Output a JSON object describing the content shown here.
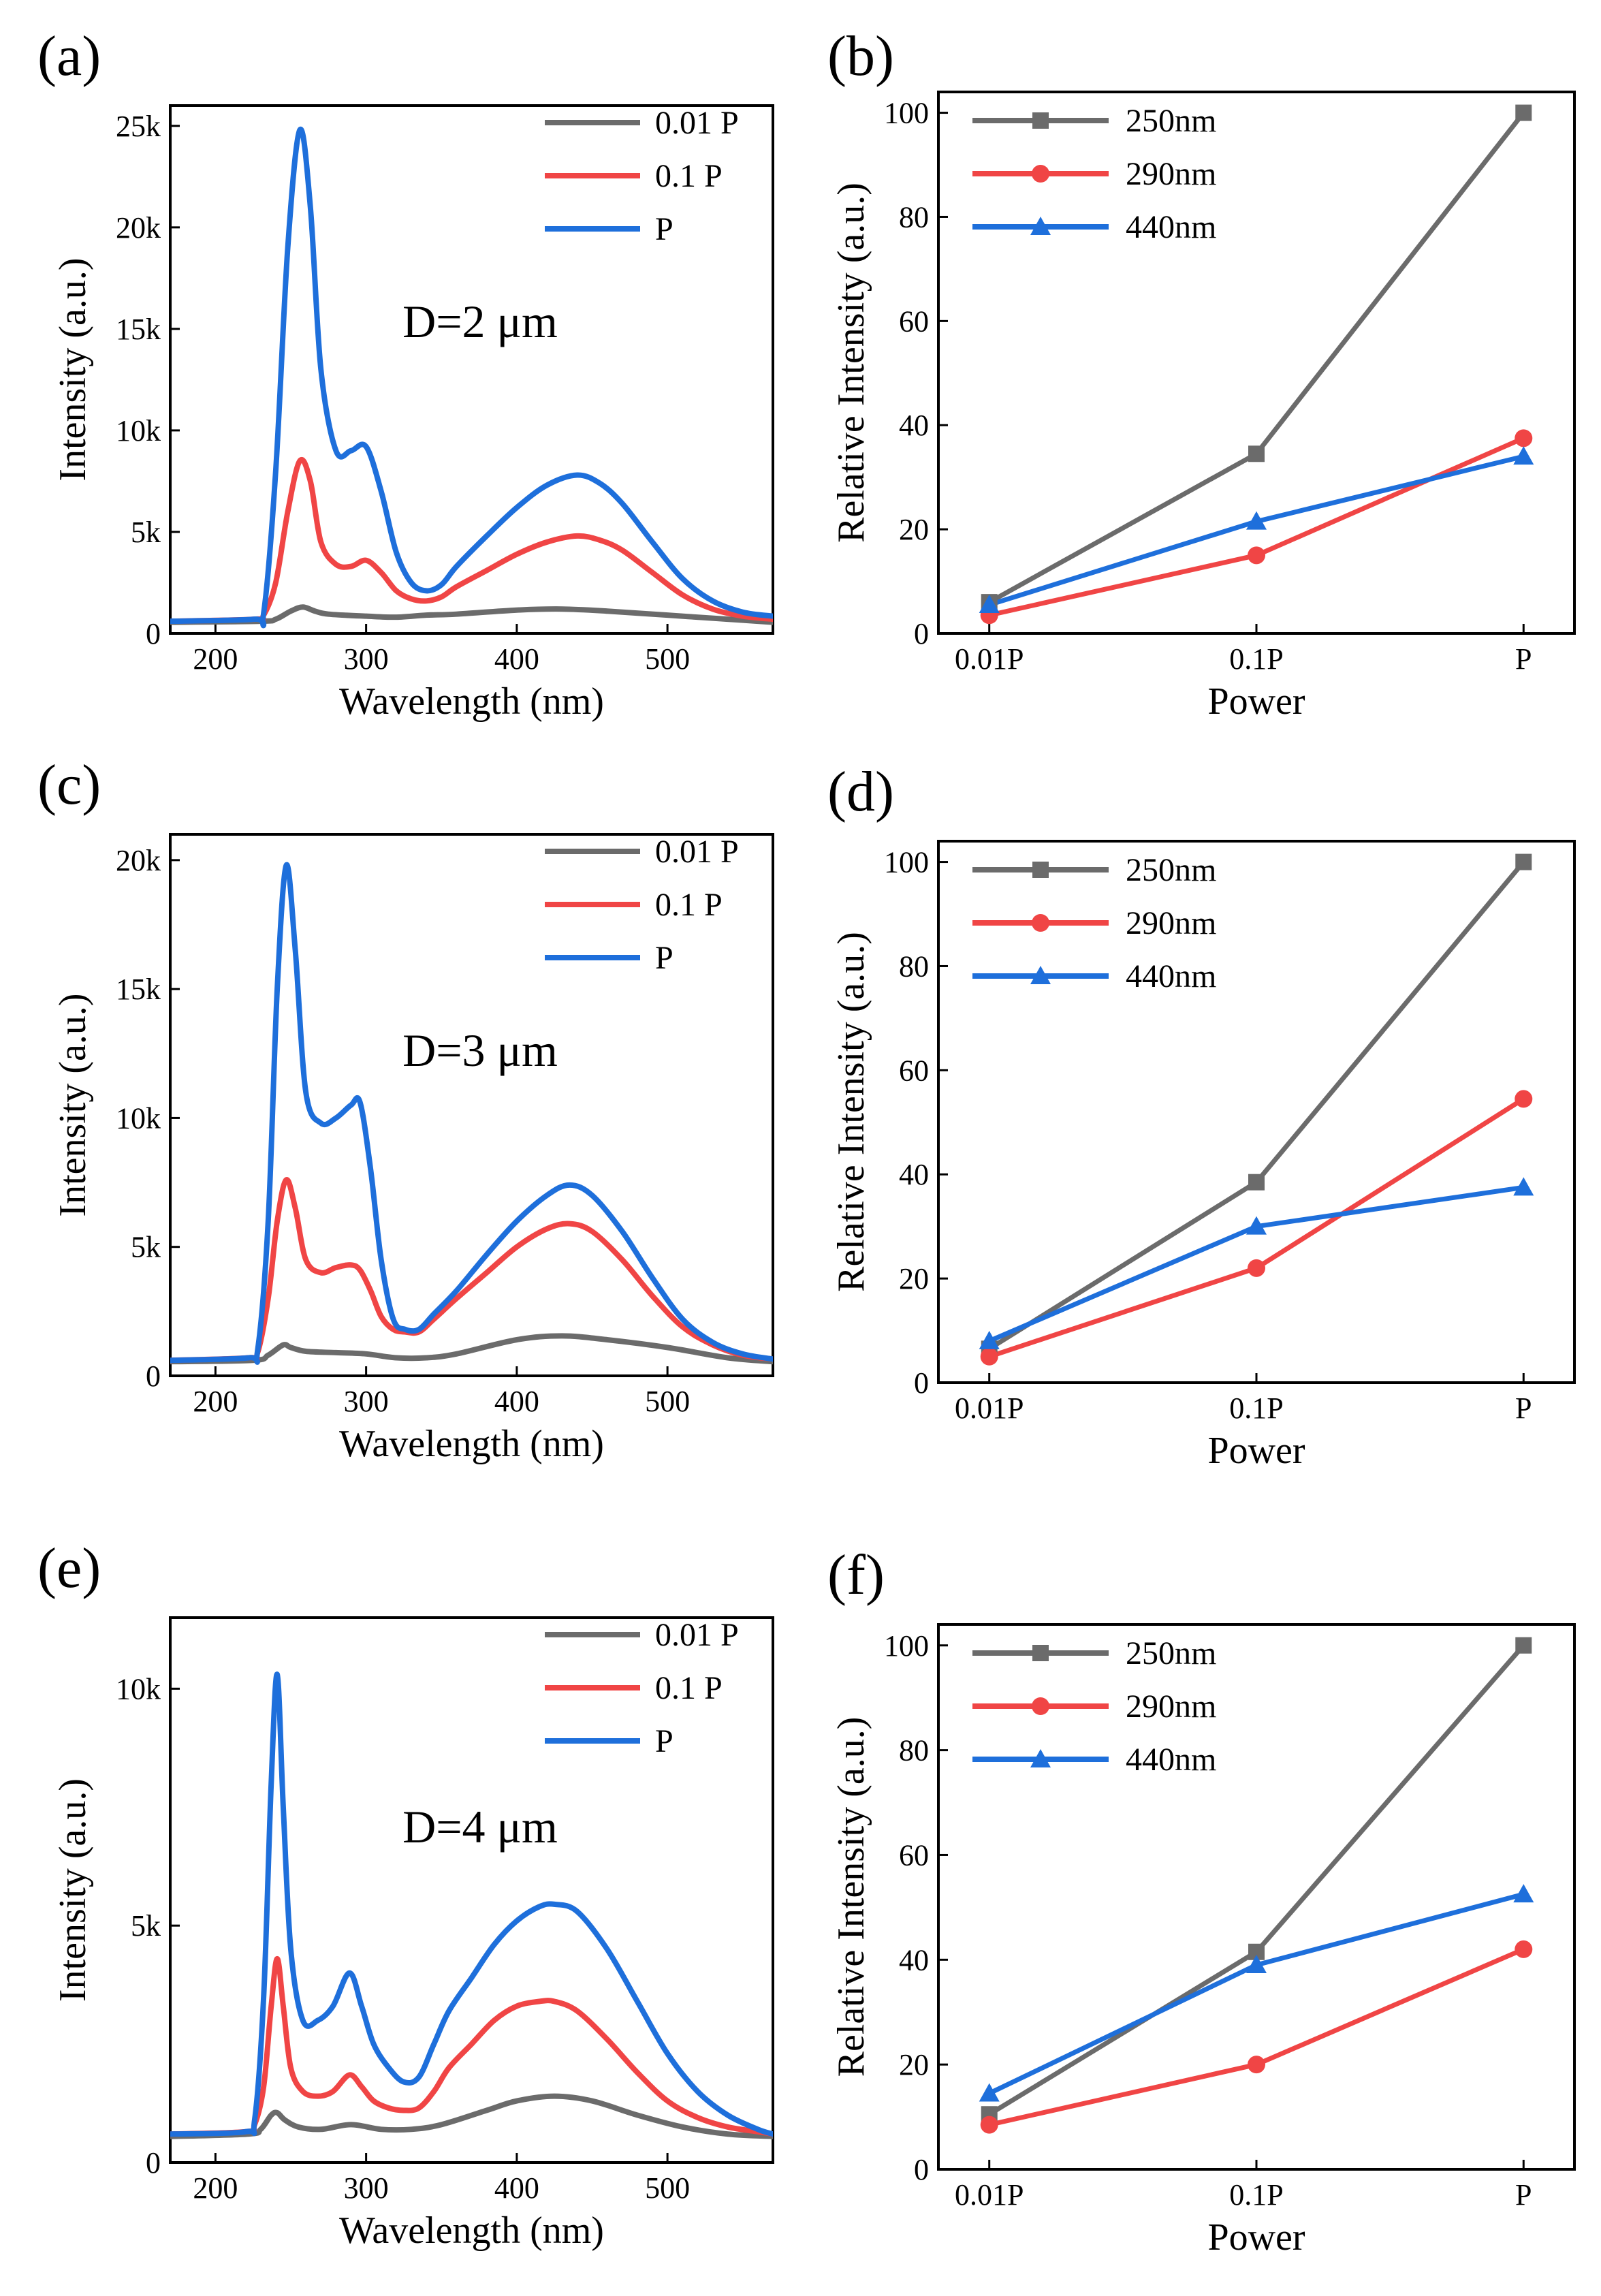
{
  "colors": {
    "gray": "#6b6b6b",
    "red": "#f04545",
    "blue": "#1e6fdb"
  },
  "chart_data": [
    {
      "id": "a",
      "panel_label": "(a)",
      "type": "line",
      "xlabel": "Wavelength (nm)",
      "ylabel": "Intensity (a.u.)",
      "xlim": [
        170,
        570
      ],
      "ylim": [
        0,
        26000
      ],
      "xticks": [
        200,
        300,
        400,
        500
      ],
      "xtick_labels": [
        "200",
        "300",
        "400",
        "500"
      ],
      "yticks": [
        0,
        5000,
        10000,
        15000,
        20000,
        25000
      ],
      "ytick_labels": [
        "0",
        "5k",
        "10k",
        "15k",
        "20k",
        "25k"
      ],
      "annotation": "D=2 μm",
      "legend_position": "top-right",
      "series": [
        {
          "name": "0.01 P",
          "color": "#6b6b6b",
          "x": [
            170,
            230,
            240,
            250,
            258,
            266,
            275,
            300,
            320,
            340,
            360,
            400,
            430,
            460,
            500,
            540,
            570
          ],
          "y": [
            550,
            600,
            700,
            1100,
            1300,
            1100,
            950,
            850,
            800,
            900,
            950,
            1150,
            1200,
            1100,
            900,
            700,
            550
          ]
        },
        {
          "name": "0.1 P",
          "color": "#f04545",
          "x": [
            170,
            226,
            232,
            240,
            248,
            256,
            263,
            270,
            280,
            290,
            300,
            310,
            320,
            330,
            340,
            350,
            360,
            380,
            400,
            420,
            440,
            455,
            470,
            490,
            510,
            530,
            550,
            570
          ],
          "y": [
            600,
            700,
            900,
            2500,
            6000,
            8500,
            7500,
            4500,
            3400,
            3300,
            3600,
            3000,
            2100,
            1700,
            1600,
            1800,
            2300,
            3100,
            3900,
            4500,
            4800,
            4600,
            4100,
            3000,
            1900,
            1200,
            850,
            700
          ]
        },
        {
          "name": "P",
          "color": "#1e6fdb",
          "x": [
            170,
            226,
            232,
            240,
            248,
            256,
            263,
            270,
            280,
            290,
            300,
            310,
            320,
            330,
            340,
            350,
            360,
            380,
            400,
            420,
            440,
            455,
            470,
            490,
            510,
            530,
            550,
            570
          ],
          "y": [
            600,
            700,
            1000,
            8000,
            19000,
            24800,
            21000,
            13000,
            9000,
            9000,
            9200,
            7000,
            4000,
            2500,
            2100,
            2400,
            3300,
            4800,
            6200,
            7300,
            7800,
            7400,
            6400,
            4500,
            2700,
            1600,
            1050,
            850
          ]
        }
      ]
    },
    {
      "id": "b",
      "panel_label": "(b)",
      "type": "line",
      "xlabel": "Power",
      "ylabel": "Relative Intensity (a.u.)",
      "categories": [
        "0.01P",
        "0.1P",
        "P"
      ],
      "ylim": [
        0,
        104
      ],
      "yticks": [
        0,
        20,
        40,
        60,
        80,
        100
      ],
      "ytick_labels": [
        "0",
        "20",
        "40",
        "60",
        "80",
        "100"
      ],
      "legend_position": "top-left",
      "series": [
        {
          "name": "250nm",
          "color": "#6b6b6b",
          "marker": "square",
          "values": [
            6,
            34.5,
            100
          ]
        },
        {
          "name": "290nm",
          "color": "#f04545",
          "marker": "circle",
          "values": [
            3.5,
            15,
            37.5
          ]
        },
        {
          "name": "440nm",
          "color": "#1e6fdb",
          "marker": "triangle",
          "values": [
            5.5,
            21.5,
            34
          ]
        }
      ]
    },
    {
      "id": "c",
      "panel_label": "(c)",
      "type": "line",
      "xlabel": "Wavelength (nm)",
      "ylabel": "Intensity (a.u.)",
      "xlim": [
        170,
        570
      ],
      "ylim": [
        0,
        21000
      ],
      "xticks": [
        200,
        300,
        400,
        500
      ],
      "xtick_labels": [
        "200",
        "300",
        "400",
        "500"
      ],
      "yticks": [
        0,
        5000,
        10000,
        15000,
        20000
      ],
      "ytick_labels": [
        "0",
        "5k",
        "10k",
        "15k",
        "20k"
      ],
      "annotation": "D=3 μm",
      "legend_position": "top-right",
      "series": [
        {
          "name": "0.01 P",
          "color": "#6b6b6b",
          "x": [
            170,
            225,
            235,
            245,
            250,
            260,
            280,
            300,
            320,
            340,
            360,
            400,
            430,
            460,
            500,
            540,
            570
          ],
          "y": [
            550,
            600,
            800,
            1200,
            1100,
            950,
            900,
            850,
            700,
            700,
            850,
            1400,
            1550,
            1400,
            1100,
            700,
            550
          ]
        },
        {
          "name": "0.1 P",
          "color": "#f04545",
          "x": [
            170,
            222,
            228,
            235,
            241,
            247,
            253,
            260,
            270,
            280,
            290,
            296,
            303,
            310,
            318,
            326,
            335,
            345,
            360,
            380,
            400,
            420,
            435,
            450,
            470,
            490,
            510,
            530,
            550,
            570
          ],
          "y": [
            600,
            700,
            900,
            3000,
            6000,
            7600,
            6500,
            4500,
            4000,
            4200,
            4300,
            4100,
            3300,
            2300,
            1800,
            1700,
            1700,
            2200,
            3000,
            4000,
            5000,
            5700,
            5900,
            5600,
            4500,
            3100,
            1900,
            1200,
            800,
            650
          ]
        },
        {
          "name": "P",
          "color": "#1e6fdb",
          "x": [
            170,
            222,
            228,
            235,
            241,
            247,
            253,
            260,
            270,
            280,
            290,
            296,
            303,
            310,
            318,
            326,
            335,
            345,
            360,
            380,
            400,
            420,
            435,
            450,
            470,
            490,
            510,
            530,
            550,
            570
          ],
          "y": [
            600,
            700,
            1000,
            6000,
            15000,
            19800,
            16500,
            11000,
            9800,
            10000,
            10500,
            10600,
            8000,
            4500,
            2200,
            1800,
            1800,
            2400,
            3300,
            4700,
            6000,
            7000,
            7400,
            7000,
            5600,
            3800,
            2200,
            1300,
            850,
            650
          ]
        }
      ]
    },
    {
      "id": "d",
      "panel_label": "(d)",
      "type": "line",
      "xlabel": "Power",
      "ylabel": "Relative Intensity (a.u.)",
      "categories": [
        "0.01P",
        "0.1P",
        "P"
      ],
      "ylim": [
        0,
        104
      ],
      "yticks": [
        0,
        20,
        40,
        60,
        80,
        100
      ],
      "ytick_labels": [
        "0",
        "20",
        "40",
        "60",
        "80",
        "100"
      ],
      "legend_position": "top-left",
      "series": [
        {
          "name": "250nm",
          "color": "#6b6b6b",
          "marker": "square",
          "values": [
            6.5,
            38.5,
            100
          ]
        },
        {
          "name": "290nm",
          "color": "#f04545",
          "marker": "circle",
          "values": [
            5,
            22,
            54.5
          ]
        },
        {
          "name": "440nm",
          "color": "#1e6fdb",
          "marker": "triangle",
          "values": [
            8,
            30,
            37.5
          ]
        }
      ]
    },
    {
      "id": "e",
      "panel_label": "(e)",
      "type": "line",
      "xlabel": "Wavelength (nm)",
      "ylabel": "Intensity (a.u.)",
      "xlim": [
        170,
        570
      ],
      "ylim": [
        0,
        11500
      ],
      "xticks": [
        200,
        300,
        400,
        500
      ],
      "xtick_labels": [
        "200",
        "300",
        "400",
        "500"
      ],
      "yticks": [
        0,
        5000,
        10000
      ],
      "ytick_labels": [
        "0",
        "5k",
        "10k"
      ],
      "annotation": "D=4 μm",
      "legend_position": "top-right",
      "series": [
        {
          "name": "0.01 P",
          "color": "#6b6b6b",
          "x": [
            170,
            222,
            230,
            237,
            241,
            246,
            255,
            270,
            290,
            310,
            330,
            350,
            380,
            400,
            425,
            450,
            480,
            510,
            540,
            570
          ],
          "y": [
            550,
            600,
            700,
            1000,
            1050,
            900,
            750,
            700,
            800,
            700,
            700,
            800,
            1100,
            1300,
            1400,
            1300,
            1000,
            750,
            600,
            550
          ]
        },
        {
          "name": "0.1 P",
          "color": "#f04545",
          "x": [
            170,
            220,
            226,
            232,
            237,
            241,
            245,
            250,
            258,
            268,
            278,
            289,
            297,
            305,
            315,
            325,
            335,
            345,
            355,
            370,
            385,
            400,
            415,
            425,
            440,
            460,
            480,
            500,
            520,
            540,
            560,
            570
          ],
          "y": [
            600,
            650,
            800,
            1600,
            3300,
            4300,
            3300,
            2000,
            1500,
            1400,
            1500,
            1850,
            1600,
            1300,
            1150,
            1100,
            1150,
            1500,
            2000,
            2500,
            3000,
            3300,
            3400,
            3400,
            3200,
            2600,
            1900,
            1300,
            950,
            750,
            650,
            600
          ]
        },
        {
          "name": "P",
          "color": "#1e6fdb",
          "x": [
            170,
            220,
            226,
            232,
            237,
            241,
            245,
            250,
            258,
            268,
            278,
            289,
            297,
            305,
            315,
            325,
            335,
            345,
            355,
            370,
            385,
            400,
            415,
            425,
            440,
            460,
            480,
            500,
            520,
            540,
            560,
            570
          ],
          "y": [
            600,
            650,
            900,
            3500,
            8000,
            10300,
            7500,
            4500,
            3000,
            3000,
            3300,
            4000,
            3300,
            2500,
            2000,
            1700,
            1800,
            2500,
            3200,
            3900,
            4600,
            5100,
            5400,
            5450,
            5300,
            4500,
            3400,
            2300,
            1500,
            1000,
            700,
            600
          ]
        }
      ]
    },
    {
      "id": "f",
      "panel_label": "(f)",
      "type": "line",
      "xlabel": "Power",
      "ylabel": "Relative Intensity (a.u.)",
      "categories": [
        "0.01P",
        "0.1P",
        "P"
      ],
      "ylim": [
        0,
        104
      ],
      "yticks": [
        0,
        20,
        40,
        60,
        80,
        100
      ],
      "ytick_labels": [
        "0",
        "20",
        "40",
        "60",
        "80",
        "100"
      ],
      "legend_position": "top-left",
      "series": [
        {
          "name": "250nm",
          "color": "#6b6b6b",
          "marker": "square",
          "values": [
            10.5,
            41.5,
            100
          ]
        },
        {
          "name": "290nm",
          "color": "#f04545",
          "marker": "circle",
          "values": [
            8.5,
            20,
            42
          ]
        },
        {
          "name": "440nm",
          "color": "#1e6fdb",
          "marker": "triangle",
          "values": [
            14.5,
            39,
            52.5
          ]
        }
      ]
    }
  ]
}
